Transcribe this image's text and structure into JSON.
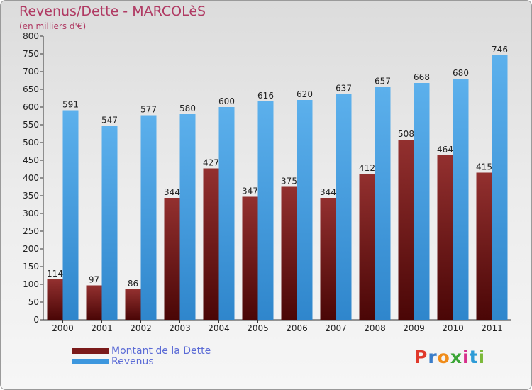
{
  "title": "Revenus/Dette - MARCOLèS",
  "subtitle": "(en milliers d'€)",
  "colors": {
    "dette": "#7a1a1a",
    "revenus": "#3d97de"
  },
  "legend": {
    "dette_label": "Montant de la Dette",
    "revenus_label": "Revenus"
  },
  "logo": {
    "text": "Proxiti"
  },
  "chart_data": {
    "type": "bar",
    "categories": [
      "2000",
      "2001",
      "2002",
      "2003",
      "2004",
      "2005",
      "2006",
      "2007",
      "2008",
      "2009",
      "2010",
      "2011"
    ],
    "series": [
      {
        "name": "Montant de la Dette",
        "values": [
          114,
          97,
          86,
          344,
          427,
          347,
          375,
          344,
          412,
          508,
          464,
          415
        ]
      },
      {
        "name": "Revenus",
        "values": [
          591,
          547,
          577,
          580,
          600,
          616,
          620,
          637,
          657,
          668,
          680,
          746
        ]
      }
    ],
    "ylim": [
      0,
      800
    ],
    "yticks": [
      0,
      50,
      100,
      150,
      200,
      250,
      300,
      350,
      400,
      450,
      500,
      550,
      600,
      650,
      700,
      750,
      800
    ],
    "grid": false,
    "legend_position": "bottom-left"
  }
}
